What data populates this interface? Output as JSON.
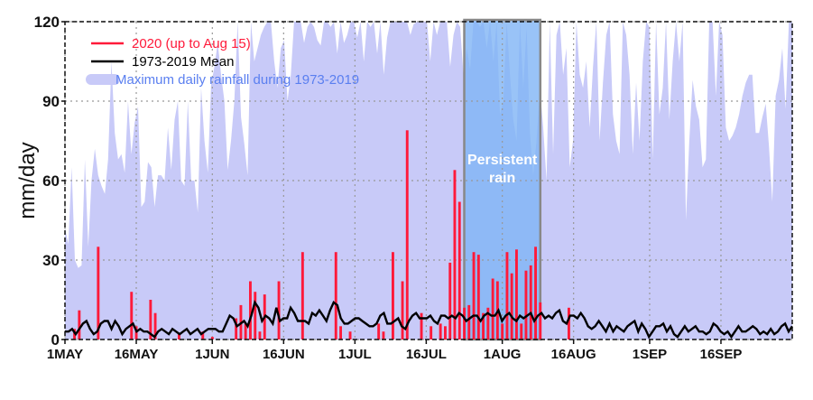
{
  "chart_data": {
    "type": "bar",
    "ylabel": "mm/day",
    "ylim": [
      0,
      120
    ],
    "yticks": [
      "0",
      "30",
      "60",
      "90",
      "120"
    ],
    "xlim": [
      "1MAY",
      "30SEP"
    ],
    "xticks": [
      "1MAY",
      "16MAY",
      "1JUN",
      "16JUN",
      "1JUL",
      "16JUL",
      "1AUG",
      "16AUG",
      "1SEP",
      "16SEP"
    ],
    "grid": true,
    "legend_position": "top-left",
    "colors": {
      "rain2020": "#ff1a3a",
      "mean": "#000000",
      "max_fill": "#c8caf8",
      "max_legend": "#5a7ff0",
      "highlight": "#7fb4f5"
    },
    "legend": [
      {
        "label": "2020 (up to Aug 15)",
        "color": "#ff1a3a"
      },
      {
        "label": "1973-2019 Mean",
        "color": "#000000"
      },
      {
        "label": "Maximum daily rainfall during 1973-2019",
        "color": "#5a7ff0"
      }
    ],
    "annotation": {
      "line1": "Persistent",
      "line2": "rain",
      "range_days": [
        84,
        100
      ]
    },
    "series": [
      {
        "name": "2020 (up to Aug 15)",
        "kind": "bar",
        "days": [
          2,
          3,
          7,
          14,
          15,
          18,
          19,
          24,
          29,
          31,
          36,
          37,
          38,
          39,
          40,
          41,
          42,
          45,
          50,
          57,
          58,
          60,
          66,
          67,
          69,
          71,
          72,
          75,
          77,
          79,
          80,
          81,
          82,
          83,
          84,
          85,
          86,
          87,
          88,
          89,
          90,
          91,
          92,
          93,
          94,
          95,
          96,
          97,
          98,
          99,
          100,
          106
        ],
        "values": [
          4,
          11,
          35,
          18,
          5,
          15,
          10,
          2,
          3,
          1,
          8,
          13,
          6,
          22,
          18,
          3,
          17,
          22,
          33,
          33,
          5,
          3,
          6,
          3,
          33,
          22,
          79,
          10,
          5,
          6,
          5,
          29,
          64,
          52,
          12,
          13,
          33,
          32,
          10,
          12,
          23,
          22,
          6,
          33,
          25,
          34,
          6,
          26,
          28,
          35,
          14,
          12
        ]
      },
      {
        "name": "1973-2019 Mean",
        "kind": "line",
        "values": [
          3,
          3,
          4,
          2,
          4,
          6,
          7,
          4,
          2,
          3,
          6,
          7,
          7,
          4,
          7,
          5,
          2,
          4,
          5,
          6,
          3,
          4,
          3,
          3,
          2,
          1,
          3,
          4,
          3,
          2,
          4,
          3,
          2,
          3,
          4,
          2,
          3,
          4,
          2,
          3,
          4,
          4,
          4,
          3,
          3,
          6,
          9,
          8,
          5,
          6,
          7,
          5,
          9,
          14,
          12,
          7,
          9,
          8,
          6,
          12,
          7,
          8,
          8,
          12,
          10,
          7,
          7,
          7,
          6,
          10,
          9,
          11,
          9,
          7,
          11,
          14,
          13,
          8,
          6,
          6,
          7,
          8,
          8,
          7,
          6,
          5,
          5,
          6,
          9,
          10,
          6,
          6,
          7,
          8,
          5,
          4,
          7,
          9,
          10,
          8,
          8,
          8,
          9,
          7,
          6,
          9,
          9,
          8,
          9,
          8,
          10,
          9,
          7,
          8,
          9,
          9,
          7,
          9,
          10,
          9,
          9,
          11,
          7,
          9,
          10,
          8,
          7,
          9,
          8,
          9,
          10,
          7,
          9,
          10,
          8,
          9,
          8,
          10,
          11,
          7,
          6,
          9,
          9,
          8,
          10,
          8,
          5,
          4,
          5,
          7,
          5,
          3,
          6,
          3,
          5,
          4,
          3,
          5,
          6,
          7,
          3,
          6,
          4,
          1,
          3,
          5,
          5,
          6,
          3,
          5,
          2,
          1,
          3,
          5,
          3,
          4,
          5,
          3,
          3,
          2,
          3,
          6,
          5,
          3,
          2,
          3,
          1,
          3,
          5,
          3,
          3,
          4,
          5,
          4,
          2,
          3,
          2,
          4,
          2,
          3,
          5,
          6,
          3,
          5
        ]
      },
      {
        "name": "Maximum daily rainfall during 1973-2019",
        "kind": "area",
        "values": [
          42,
          36,
          65,
          30,
          27,
          28,
          68,
          35,
          60,
          72,
          62,
          58,
          55,
          68,
          105,
          78,
          68,
          70,
          63,
          90,
          70,
          82,
          88,
          50,
          52,
          67,
          65,
          50,
          62,
          62,
          60,
          80,
          64,
          83,
          90,
          60,
          58,
          90,
          60,
          60,
          48,
          95,
          75,
          63,
          96,
          103,
          112,
          100,
          90,
          64,
          75,
          90,
          120,
          84,
          74,
          62,
          120,
          105,
          110,
          115,
          118,
          120,
          120,
          105,
          95,
          110,
          113,
          90,
          100,
          120,
          120,
          120,
          112,
          118,
          120,
          118,
          113,
          111,
          120,
          120,
          118,
          120,
          108,
          120,
          112,
          115,
          120,
          120,
          114,
          120,
          105,
          120,
          118,
          120,
          108,
          120,
          100,
          114,
          120,
          120,
          120,
          120,
          120,
          120,
          115,
          119,
          120,
          120,
          120,
          120,
          105,
          120,
          115,
          120,
          120,
          120,
          103,
          115,
          120,
          118,
          100,
          110,
          102,
          120,
          120,
          118,
          120,
          110,
          120,
          105,
          120,
          85,
          90,
          120,
          100,
          83,
          75,
          120,
          95,
          118,
          78,
          62,
          75,
          95,
          80,
          60,
          120,
          70,
          115,
          120,
          100,
          110,
          65,
          75,
          120,
          100,
          95,
          105,
          80,
          103,
          120,
          75,
          97,
          115,
          120,
          85,
          75,
          70,
          120,
          115,
          100,
          70,
          97,
          75,
          105,
          120,
          118,
          68,
          120,
          85,
          95,
          120,
          83,
          105,
          120,
          105,
          120,
          45,
          75,
          98,
          88,
          83,
          65,
          68,
          120,
          120,
          92,
          120,
          115,
          80,
          75,
          77,
          80,
          85,
          92,
          97,
          100,
          100,
          78,
          78,
          84,
          89,
          73,
          52,
          92,
          98,
          110,
          87,
          120,
          120
        ]
      }
    ]
  }
}
